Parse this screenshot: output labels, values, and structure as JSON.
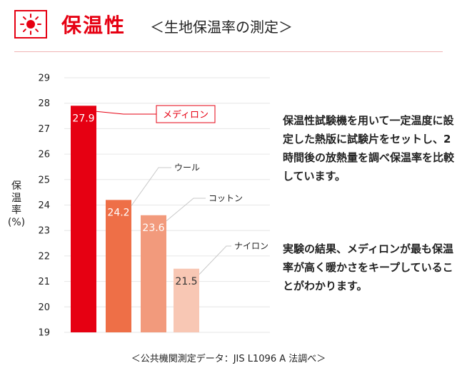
{
  "header": {
    "title": "保温性",
    "subtitle": "＜生地保温率の測定＞"
  },
  "description": {
    "para1": "保温性試験機を用いて一定温度に設定した熱版に試験片をセットし、2時間後の放熱量を調べ保温率を比較しています。",
    "para2": "実験の結果、メディロンが最も保温率が高く暖かさをキープしていることがわかります。"
  },
  "source": "＜公共機関測定データ：JIS L1096 A 法調べ＞",
  "ylabel_lines": [
    "保",
    "温",
    "率",
    "(%)"
  ],
  "chart_data": {
    "type": "bar",
    "categories": [
      "メディロン",
      "ウール",
      "コットン",
      "ナイロン"
    ],
    "values": [
      27.9,
      24.2,
      23.6,
      21.5
    ],
    "value_labels": [
      "27.9",
      "24.2",
      "23.6",
      "21.5"
    ],
    "colors": [
      "#e60012",
      "#ee6f47",
      "#f29a7c",
      "#f8c7b4"
    ],
    "ylabel": "保温率(%)",
    "ylim": [
      19,
      29
    ],
    "yticks": [
      19,
      20,
      21,
      22,
      23,
      24,
      25,
      26,
      27,
      28,
      29
    ],
    "grid": true,
    "highlight": "メディロン"
  },
  "colors": {
    "accent": "#e60012",
    "grid": "#e6e6e6"
  },
  "icons": {
    "header": "sun-icon"
  }
}
